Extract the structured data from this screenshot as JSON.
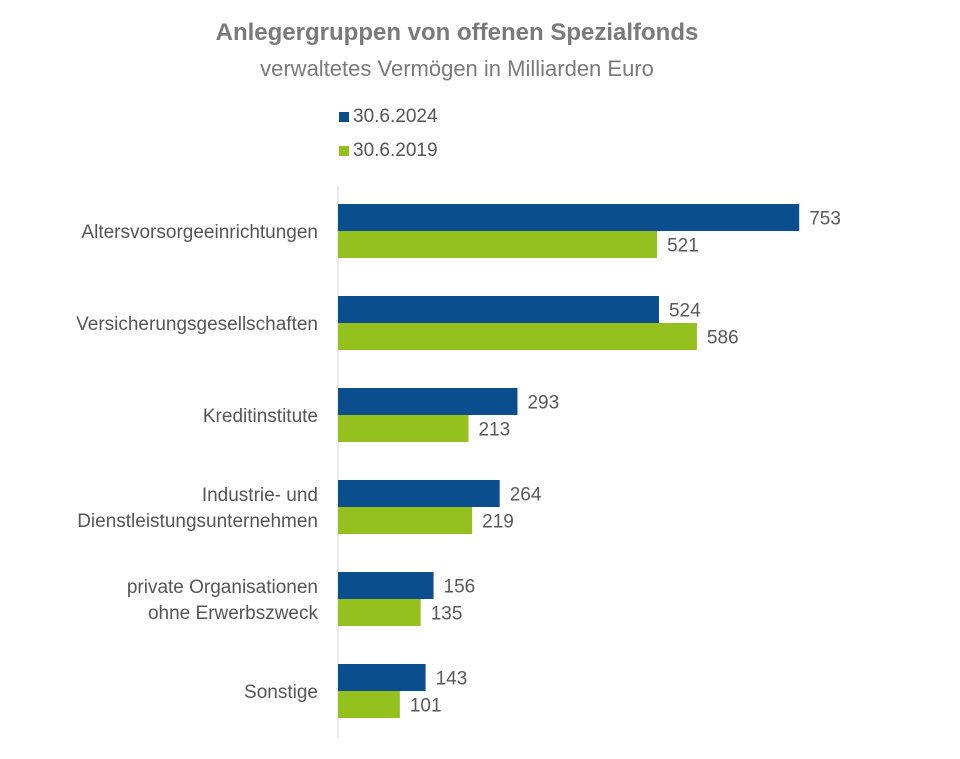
{
  "chart_data": {
    "type": "bar",
    "orientation": "horizontal",
    "title": "Anlegergruppen von offenen Spezialfonds",
    "subtitle": "verwaltetes Vermögen in Milliarden Euro",
    "categories": [
      [
        "Altersvorsorgeeinrichtungen"
      ],
      [
        "Versicherungsgesellschaften"
      ],
      [
        "Kreditinstitute"
      ],
      [
        "Industrie- und",
        "Dienstleistungsunternehmen"
      ],
      [
        "private Organisationen",
        "ohne Erwerbszweck"
      ],
      [
        "Sonstige"
      ]
    ],
    "series": [
      {
        "name": "30.6.2024",
        "color": "#0b4e8e",
        "values": [
          753,
          524,
          293,
          264,
          156,
          143
        ]
      },
      {
        "name": "30.6.2019",
        "color": "#95c11f",
        "values": [
          521,
          586,
          213,
          219,
          135,
          101
        ]
      }
    ],
    "xlim": [
      0,
      800
    ],
    "grid": false,
    "legend": "top"
  }
}
